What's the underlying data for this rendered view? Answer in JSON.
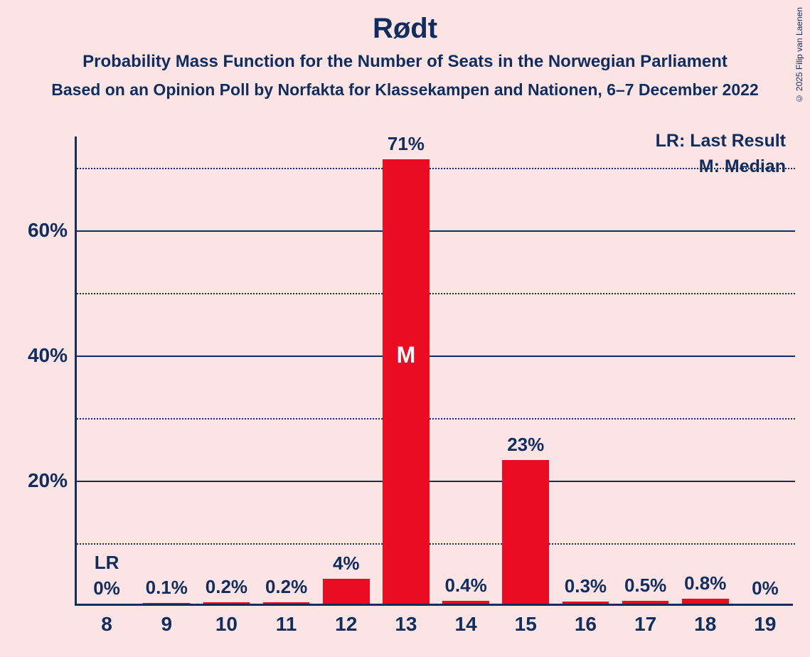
{
  "title": "Rødt",
  "subtitle": "Probability Mass Function for the Number of Seats in the Norwegian Parliament",
  "subsubtitle": "Based on an Opinion Poll by Norfakta for Klassekampen and Nationen, 6–7 December 2022",
  "copyright": "© 2025 Filip van Laenen",
  "chart": {
    "type": "bar",
    "background_color": "#fce4e4",
    "bar_color": "#e90c23",
    "axis_color": "#0f2d5f",
    "text_color": "#0f2d5f",
    "median_text_color": "#ffffff",
    "grid_dotted_color": "#0f2d5f",
    "title_fontsize": 40,
    "subtitle_fontsize": 24,
    "label_fontsize": 26,
    "tick_fontsize": 28,
    "bar_width_ratio": 0.78,
    "ylim": [
      0,
      75
    ],
    "y_major_ticks": [
      20,
      40,
      60
    ],
    "y_minor_ticks": [
      10,
      30,
      50,
      70
    ],
    "y_tick_labels": [
      "20%",
      "40%",
      "60%"
    ],
    "categories": [
      8,
      9,
      10,
      11,
      12,
      13,
      14,
      15,
      16,
      17,
      18,
      19
    ],
    "values": [
      0,
      0.1,
      0.2,
      0.2,
      4,
      71,
      0.4,
      23,
      0.3,
      0.5,
      0.8,
      0
    ],
    "value_labels": [
      "0%",
      "0.1%",
      "0.2%",
      "0.2%",
      "4%",
      "71%",
      "0.4%",
      "23%",
      "0.3%",
      "0.5%",
      "0.8%",
      "0%"
    ],
    "last_result_index": 0,
    "last_result_label": "LR",
    "median_index": 5,
    "median_label": "M",
    "legend_lr": "LR: Last Result",
    "legend_m": "M: Median"
  }
}
